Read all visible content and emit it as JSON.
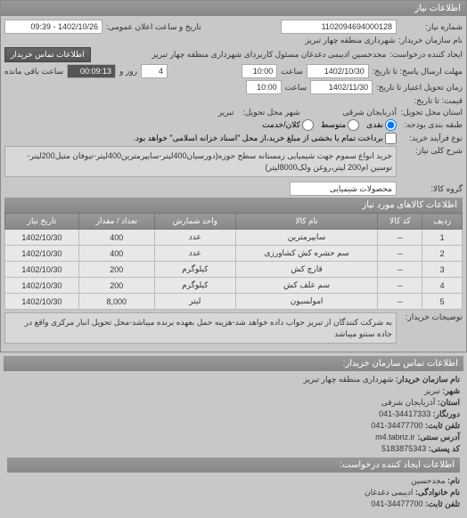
{
  "panel": {
    "title": "اطلاعات نیاز"
  },
  "header": {
    "request_no_label": "شماره نیاز:",
    "request_no": "1102094694000128",
    "announce_label": "تاریخ و ساعت اعلان عمومی:",
    "announce_value": "1402/10/26 - 09:39",
    "buyer_area_label": "شهرداری منطقه چهار تبریز",
    "buyer_name_label": "نام سازمان خریدار:",
    "requester_label": "ایجاد کننده درخواست:",
    "requester_value": "مجدحسین ادیبمی دغدغان مسئول کاربردای شهرداری منطقه چهار تبریز",
    "contact_btn": "اطلاعات تماس خریدار"
  },
  "dates": {
    "deadline_reply_label": "مهلت ارسال پاسخ: تا تاریخ:",
    "deadline_reply_date": "1402/10/30",
    "deadline_reply_time_label": "ساعت",
    "deadline_reply_time": "10:00",
    "days_label": "روز و",
    "days_value": "4",
    "remain_label": "ساعت باقی مانده",
    "remain_value": "00:09:13",
    "delivery_label": "زمان تحویل اعتبار تا تاریخ:",
    "delivery_date": "1402/11/30",
    "delivery_time_label": "ساعت",
    "delivery_time": "10:00",
    "price_label": "قیمت: تا تاریخ:"
  },
  "location": {
    "province_label": "استان محل تحویل:",
    "province": "آذربایجان شرقی",
    "city_label": "شهر محل تحویل:",
    "city": "تبریز"
  },
  "budget": {
    "label": "طبقه بندی بودجه:",
    "radio_cash": "نقدی",
    "radio_medium": "متوسط",
    "radio_credit": "کلان/خدمت"
  },
  "payment": {
    "label": "نوع فرآیند خرید:",
    "checkbox_label": "برداخت تمام یا بخشی از مبلغ خرید،از محل \"اسناد خزانه اسلامی\" خواهد بود."
  },
  "description": {
    "main_label": "شرح کلی نیاز:",
    "main_text": "خرید انواع سموم جهت شیمیایی زمستانه سطح حوزه(دورسیان400لیتر-سایپرمترین400لیتر-تیوفان متیل200لیتر-توسین ام200 لیتر،روغن ولک8000لیتر)",
    "group_label": "گروه کالا:",
    "group_value": "محصولات شیمیایی",
    "items_label": "اطلاعات کالاهای مورد نیاز"
  },
  "table": {
    "headers": {
      "row": "ردیف",
      "code": "کد کالا",
      "name": "نام کالا",
      "unit": "واحد شمارش",
      "qty": "تعداد / مقدار",
      "date": "تاریخ نیاز"
    },
    "rows": [
      {
        "row": "1",
        "code": "--",
        "name": "سایپرمترین",
        "unit": "عدد",
        "qty": "400",
        "date": "1402/10/30"
      },
      {
        "row": "2",
        "code": "--",
        "name": "سم حشره کش کشاورزی",
        "unit": "عدد",
        "qty": "400",
        "date": "1402/10/30"
      },
      {
        "row": "3",
        "code": "--",
        "name": "قارچ کش",
        "unit": "کیلوگرم",
        "qty": "200",
        "date": "1402/10/30"
      },
      {
        "row": "4",
        "code": "--",
        "name": "سم علف کش",
        "unit": "کیلوگرم",
        "qty": "200",
        "date": "1402/10/30"
      },
      {
        "row": "5",
        "code": "--",
        "name": "امولسیون",
        "unit": "لیتر",
        "qty": "8,000",
        "date": "1402/10/30"
      }
    ]
  },
  "buyer_note": {
    "label": "توضیحات خریدار:",
    "text": "به شرکت کنندگان از تبریز جواب داده خواهد شد-هزینه حمل بعهده برنده میباشد-محل تحویل انبار مرکزی واقع در جاده سنتو میباشد"
  },
  "contact": {
    "section_title": "اطلاعات تماس سازمان خریدار:",
    "org_label": "نام سازمان خریدار:",
    "org_value": "شهرداری منطقه چهار تبریز",
    "city_label": "شهر:",
    "city_value": "تبریز",
    "province_label": "استان:",
    "province_value": "آذربایجان شرقی",
    "fax_label": "دورنگار:",
    "fax_value": "34417333-041",
    "phone_label": "تلفن ثابت:",
    "phone_value": "34477700-041",
    "address_label": "آدرس سنتی:",
    "address_value": "m4.tabriz.ir",
    "postal_label": "کد پستی:",
    "postal_value": "5183875343",
    "creator_title": "اطلاعات ایجاد کننده درخواست:",
    "name_label": "نام:",
    "name_value": "مجدحسین",
    "family_label": "نام خانوادگی:",
    "family_value": "ادیبمی دغدغان",
    "phone2_label": "تلفن ثابت:",
    "phone2_value": "34477700-041"
  }
}
